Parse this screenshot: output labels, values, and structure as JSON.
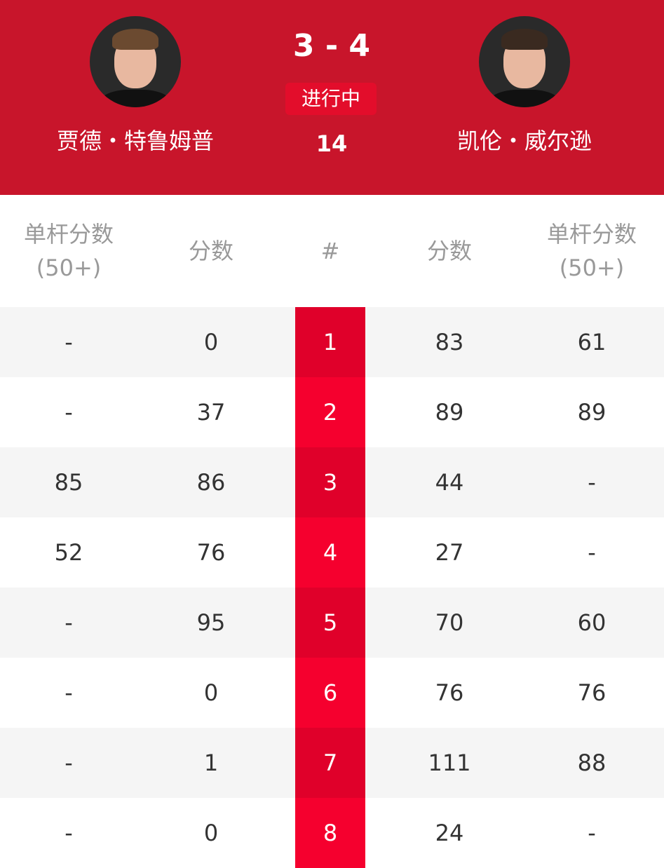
{
  "header": {
    "player_left": "贾德・特鲁姆普",
    "player_right": "凯伦・威尔逊",
    "score": "3 - 4",
    "status": "进行中",
    "frames": "14"
  },
  "table": {
    "headers": {
      "break_left": "单杆分数",
      "break_left_sub": "(50+)",
      "score_left": "分数",
      "frame": "#",
      "score_right": "分数",
      "break_right": "单杆分数",
      "break_right_sub": "(50+)"
    },
    "rows": [
      {
        "lb": "-",
        "ls": "0",
        "n": "1",
        "rs": "83",
        "rb": "61"
      },
      {
        "lb": "-",
        "ls": "37",
        "n": "2",
        "rs": "89",
        "rb": "89"
      },
      {
        "lb": "85",
        "ls": "86",
        "n": "3",
        "rs": "44",
        "rb": "-"
      },
      {
        "lb": "52",
        "ls": "76",
        "n": "4",
        "rs": "27",
        "rb": "-"
      },
      {
        "lb": "-",
        "ls": "95",
        "n": "5",
        "rs": "70",
        "rb": "60"
      },
      {
        "lb": "-",
        "ls": "0",
        "n": "6",
        "rs": "76",
        "rb": "76"
      },
      {
        "lb": "-",
        "ls": "1",
        "n": "7",
        "rs": "111",
        "rb": "88"
      },
      {
        "lb": "-",
        "ls": "0",
        "n": "8",
        "rs": "24",
        "rb": "-"
      }
    ]
  },
  "colors": {
    "header_bg": "#c8152b",
    "frame_col_odd": "#e0002a",
    "frame_col_even": "#f5002e",
    "row_alt": "#f5f5f5"
  }
}
